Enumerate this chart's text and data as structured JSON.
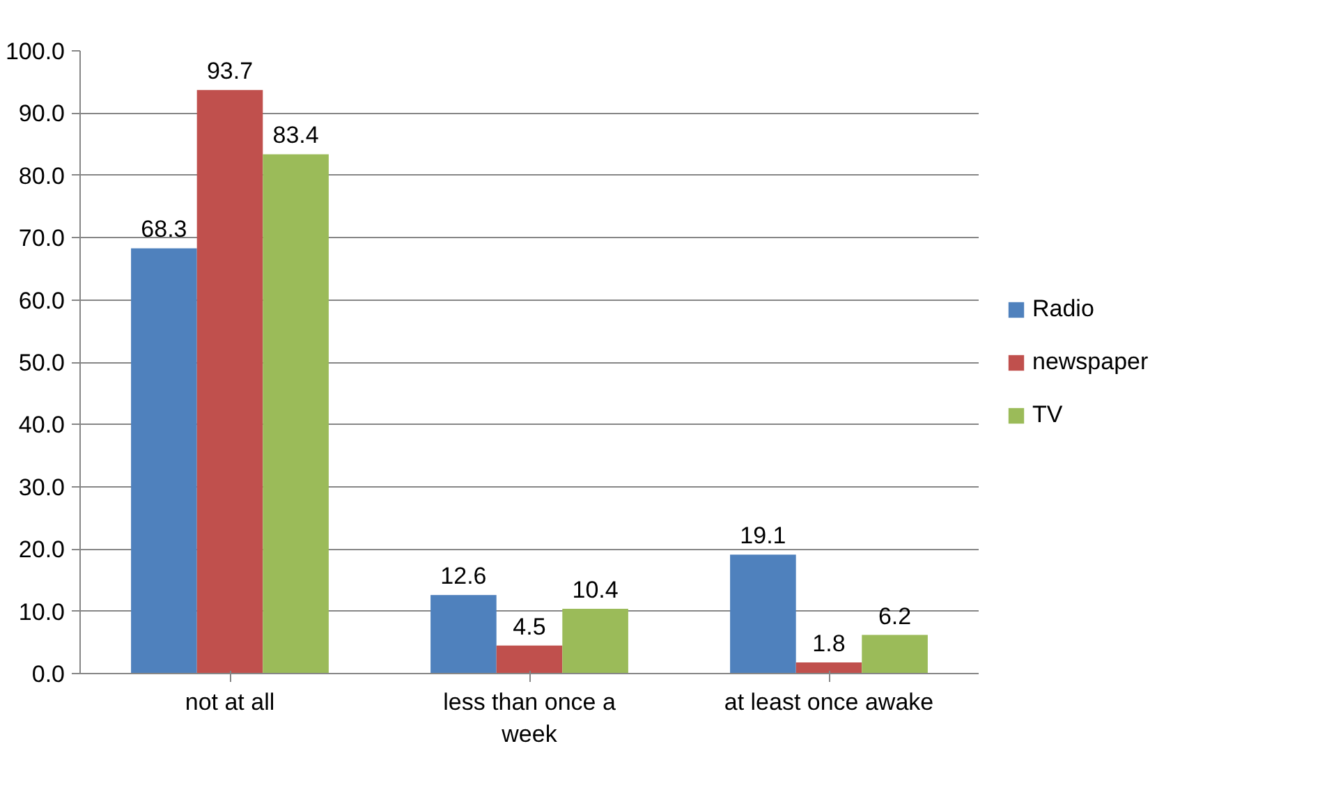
{
  "chart_data": {
    "type": "bar",
    "categories": [
      "not at all",
      "less than once a week",
      "at least once awake"
    ],
    "series": [
      {
        "name": "Radio",
        "color": "#4f81bd",
        "values": [
          68.3,
          12.6,
          19.1
        ]
      },
      {
        "name": "newspaper",
        "color": "#c0504d",
        "values": [
          93.7,
          4.5,
          1.8
        ]
      },
      {
        "name": "TV",
        "color": "#9bbb59",
        "values": [
          83.4,
          10.4,
          6.2
        ]
      }
    ],
    "ylim": [
      0,
      100
    ],
    "yticks": [
      {
        "value": 0,
        "label": "0.0"
      },
      {
        "value": 10,
        "label": "10.0"
      },
      {
        "value": 20,
        "label": "20.0"
      },
      {
        "value": 30,
        "label": "30.0"
      },
      {
        "value": 40,
        "label": "40.0"
      },
      {
        "value": 50,
        "label": "50.0"
      },
      {
        "value": 60,
        "label": "60.0"
      },
      {
        "value": 70,
        "label": "70.0"
      },
      {
        "value": 80,
        "label": "80.0"
      },
      {
        "value": 90,
        "label": "90.0"
      },
      {
        "value": 100,
        "label": "100.0"
      }
    ],
    "grid": "y",
    "legend": "right",
    "data_labels": true
  }
}
